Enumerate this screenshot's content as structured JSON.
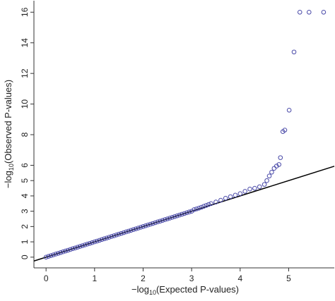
{
  "chart_data": {
    "type": "scatter",
    "xlabel": [
      "−log",
      "10",
      "(Expected P-values)"
    ],
    "ylabel": [
      "−log",
      "10",
      "(Observed P-values)"
    ],
    "x": [
      0,
      0.05,
      0.1,
      0.15,
      0.2,
      0.25,
      0.3,
      0.35,
      0.4,
      0.45,
      0.5,
      0.55,
      0.6,
      0.65,
      0.7,
      0.75,
      0.8,
      0.85,
      0.9,
      0.95,
      1,
      1.05,
      1.1,
      1.15,
      1.2,
      1.25,
      1.3,
      1.35,
      1.4,
      1.45,
      1.5,
      1.55,
      1.6,
      1.65,
      1.7,
      1.75,
      1.8,
      1.85,
      1.9,
      1.95,
      2,
      2.05,
      2.1,
      2.15,
      2.2,
      2.25,
      2.3,
      2.35,
      2.4,
      2.45,
      2.5,
      2.55,
      2.6,
      2.65,
      2.7,
      2.75,
      2.8,
      2.85,
      2.9,
      2.95,
      3,
      3.05,
      3.1,
      3.15,
      3.2,
      3.25,
      3.3,
      3.35,
      3.4,
      3.5,
      3.6,
      3.7,
      3.8,
      3.9,
      4,
      4.1,
      4.2,
      4.3,
      4.4,
      4.5,
      4.55,
      4.6,
      4.65,
      4.7,
      4.75,
      4.8,
      4.83,
      4.88,
      4.92,
      5.01,
      5.11,
      5.23,
      5.42,
      5.72
    ],
    "y": [
      0,
      0.05,
      0.1,
      0.15,
      0.2,
      0.25,
      0.3,
      0.35,
      0.4,
      0.45,
      0.5,
      0.55,
      0.6,
      0.65,
      0.7,
      0.75,
      0.8,
      0.85,
      0.9,
      0.95,
      1,
      1.05,
      1.1,
      1.15,
      1.2,
      1.25,
      1.3,
      1.35,
      1.4,
      1.45,
      1.5,
      1.55,
      1.6,
      1.65,
      1.7,
      1.75,
      1.8,
      1.85,
      1.9,
      1.95,
      2,
      2.05,
      2.1,
      2.15,
      2.2,
      2.25,
      2.3,
      2.35,
      2.4,
      2.45,
      2.5,
      2.55,
      2.6,
      2.65,
      2.7,
      2.75,
      2.8,
      2.85,
      2.9,
      2.95,
      3,
      3.1,
      3.15,
      3.2,
      3.26,
      3.32,
      3.38,
      3.44,
      3.5,
      3.6,
      3.72,
      3.85,
      3.95,
      4.05,
      4.15,
      4.3,
      4.45,
      4.5,
      4.6,
      4.75,
      5,
      5.3,
      5.55,
      5.8,
      5.95,
      6.05,
      6.5,
      8.2,
      8.3,
      9.6,
      13.4,
      16,
      16,
      16
    ],
    "color": "#4a4aa8",
    "reference_line": {
      "x": [
        -0.25,
        5.94
      ],
      "y": [
        -0.25,
        5.94
      ],
      "color": "#000000"
    },
    "xlim": [
      -0.25,
      5.94
    ],
    "ylim": [
      -0.7,
      16.75
    ],
    "xticks": [
      0,
      1,
      2,
      3,
      4,
      5
    ],
    "yticks": [
      0,
      1,
      2,
      3,
      4,
      5,
      6,
      8,
      10,
      12,
      14,
      16
    ]
  }
}
